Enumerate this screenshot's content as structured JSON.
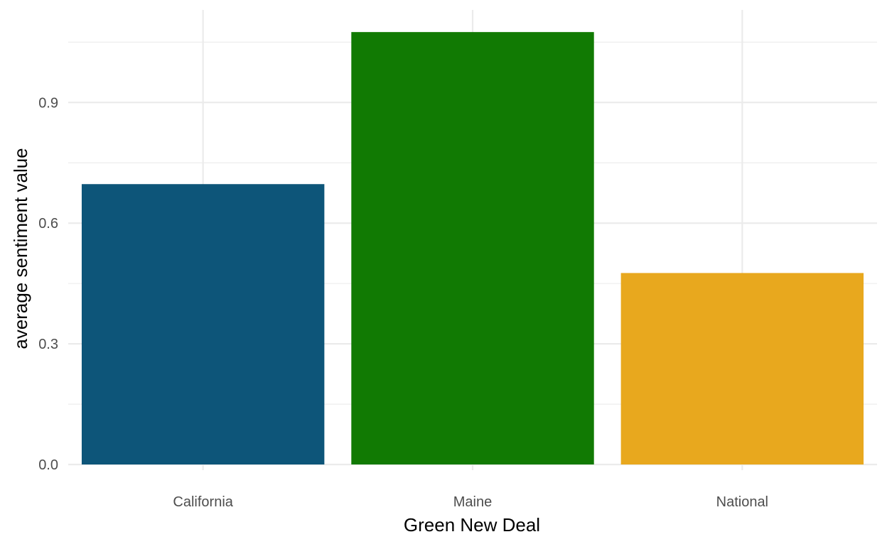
{
  "chart_data": {
    "type": "bar",
    "title": "",
    "xlabel": "Green New Deal",
    "ylabel": "average sentiment value",
    "categories": [
      "California",
      "Maine",
      "National"
    ],
    "values": [
      0.697,
      1.075,
      0.476
    ],
    "colors": [
      "#0D5579",
      "#117A03",
      "#E8A81E"
    ],
    "ylim": [
      0,
      1.13
    ],
    "yticks": [
      0.0,
      0.3,
      0.6,
      0.9
    ],
    "ytick_labels": [
      "0.0",
      "0.3",
      "0.6",
      "0.9"
    ],
    "grid": true,
    "legend": false
  }
}
